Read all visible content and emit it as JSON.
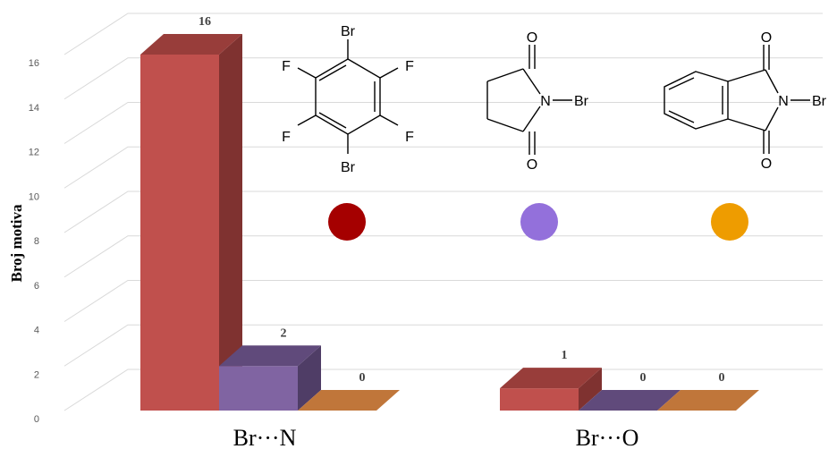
{
  "chart_data": {
    "type": "bar",
    "ylabel": "Broj motiva",
    "yticks": [
      "0",
      "2",
      "4",
      "6",
      "8",
      "10",
      "12",
      "14",
      "16"
    ],
    "ylim": [
      0,
      16
    ],
    "grid": true,
    "categories": [
      "Br···N",
      "Br···O"
    ],
    "series": [
      {
        "values": [
          16,
          1
        ],
        "colors": {
          "front": "#c0504d",
          "side": "#7f3230",
          "top": "#983d3a"
        }
      },
      {
        "values": [
          2,
          0
        ],
        "colors": {
          "front": "#8064a2",
          "side": "#4f3d66",
          "top": "#604a7b"
        }
      },
      {
        "values": [
          0,
          0
        ],
        "colors": {
          "front": "#f79646",
          "side": "#b5682b",
          "top": "#c0763a"
        }
      }
    ],
    "data_labels": [
      [
        "16",
        "1"
      ],
      [
        "2",
        "0"
      ],
      [
        "0",
        "0"
      ]
    ]
  },
  "legend_markers": [
    {
      "color": "#a50000"
    },
    {
      "color": "#9370db"
    },
    {
      "color": "#ee9c00"
    }
  ],
  "structures": {
    "hexafluoro": {
      "atoms": {
        "br_top": "Br",
        "br_bottom": "Br",
        "f1": "F",
        "f2": "F",
        "f3": "F",
        "f4": "F"
      }
    },
    "nbs": {
      "atoms": {
        "o_top": "O",
        "o_bottom": "O",
        "n": "N",
        "br": "Br"
      }
    },
    "nbp": {
      "atoms": {
        "o_top": "O",
        "o_bottom": "O",
        "n": "N",
        "br": "Br"
      }
    }
  }
}
